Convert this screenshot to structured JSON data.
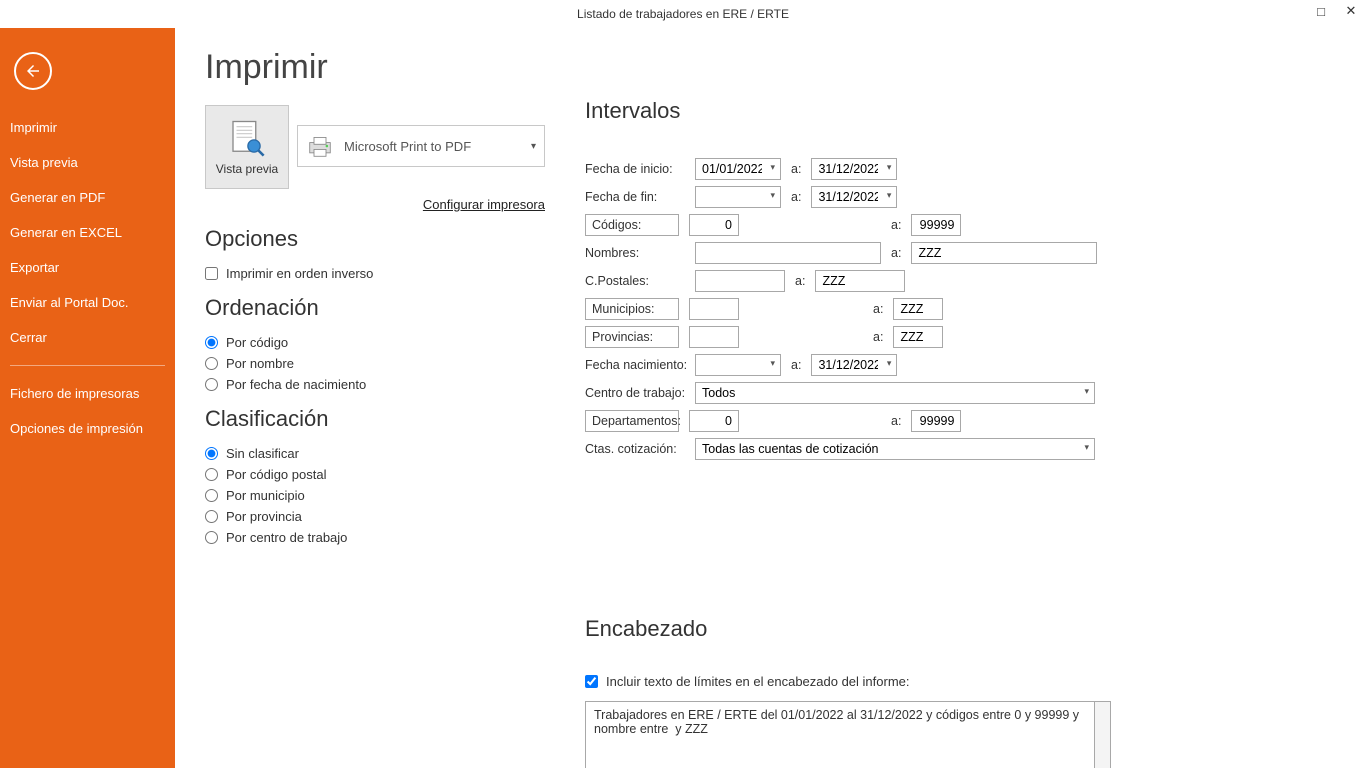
{
  "window": {
    "title": "Listado de trabajadores en ERE / ERTE"
  },
  "sidebar": {
    "items": [
      "Imprimir",
      "Vista previa",
      "Generar en PDF",
      "Generar en EXCEL",
      "Exportar",
      "Enviar al Portal Doc.",
      "Cerrar"
    ],
    "items2": [
      "Fichero de impresoras",
      "Opciones de impresión"
    ]
  },
  "page": {
    "title": "Imprimir"
  },
  "preview": {
    "label": "Vista previa",
    "printer": "Microsoft Print to PDF",
    "configure": "Configurar impresora"
  },
  "options": {
    "heading": "Opciones",
    "reverse": "Imprimir en orden inverso",
    "reverse_checked": false
  },
  "order": {
    "heading": "Ordenación",
    "items": [
      {
        "label": "Por código",
        "checked": true
      },
      {
        "label": "Por nombre",
        "checked": false
      },
      {
        "label": "Por fecha de nacimiento",
        "checked": false
      }
    ]
  },
  "classify": {
    "heading": "Clasificación",
    "items": [
      {
        "label": "Sin clasificar",
        "checked": true
      },
      {
        "label": "Por código postal",
        "checked": false
      },
      {
        "label": "Por municipio",
        "checked": false
      },
      {
        "label": "Por provincia",
        "checked": false
      },
      {
        "label": "Por centro de trabajo",
        "checked": false
      }
    ]
  },
  "intervals": {
    "heading": "Intervalos",
    "to": "a:",
    "fecha_inicio": {
      "label": "Fecha de inicio:",
      "from": "01/01/2022",
      "to": "31/12/2022"
    },
    "fecha_fin": {
      "label": "Fecha de fin:",
      "from": "",
      "to": "31/12/2022"
    },
    "codigos": {
      "label": "Códigos:",
      "from": "0",
      "to": "99999"
    },
    "nombres": {
      "label": "Nombres:",
      "from": "",
      "to": "ZZZ"
    },
    "cpostales": {
      "label": "C.Postales:",
      "from": "",
      "to": "ZZZ"
    },
    "municipios": {
      "label": "Municipios:",
      "from": "",
      "to": "ZZZ"
    },
    "provincias": {
      "label": "Provincias:",
      "from": "",
      "to": "ZZZ"
    },
    "fecha_nac": {
      "label": "Fecha nacimiento:",
      "from": "",
      "to": "31/12/2022"
    },
    "centro": {
      "label": "Centro de trabajo:",
      "value": "Todos"
    },
    "departamentos": {
      "label": "Departamentos:",
      "from": "0",
      "to": "99999"
    },
    "ctas": {
      "label": "Ctas. cotización:",
      "value": "Todas las cuentas de cotización"
    }
  },
  "header": {
    "heading": "Encabezado",
    "include_label": "Incluir texto de límites en el encabezado del informe:",
    "include_checked": true,
    "text": "Trabajadores en ERE / ERTE del 01/01/2022 al 31/12/2022 y códigos entre 0 y 99999 y nombre entre  y ZZZ"
  },
  "colors": {
    "accent": "#e96216"
  }
}
